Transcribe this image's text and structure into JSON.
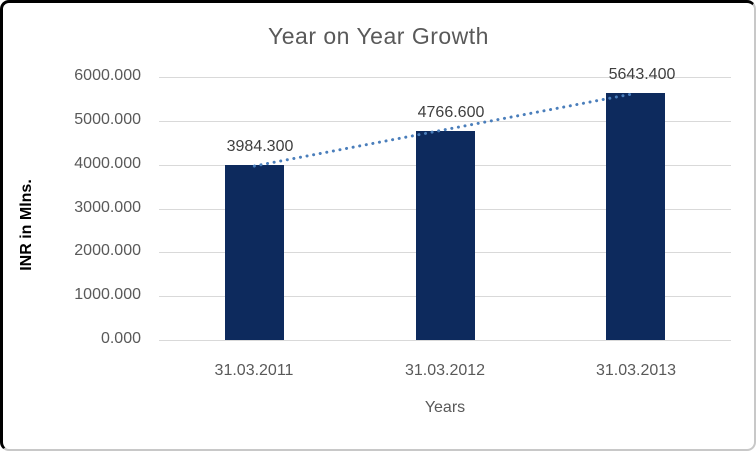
{
  "chart_data": {
    "type": "bar",
    "title": "Year on Year Growth",
    "xlabel": "Years",
    "ylabel": "INR in Mlns.",
    "categories": [
      "31.03.2011",
      "31.03.2012",
      "31.03.2013"
    ],
    "values": [
      3984.3,
      4766.6,
      5643.4
    ],
    "data_labels": [
      "3984.300",
      "4766.600",
      "5643.400"
    ],
    "ylim": [
      0,
      6000
    ],
    "ytick_labels": [
      "0.000",
      "1000.000",
      "2000.000",
      "3000.000",
      "4000.000",
      "5000.000",
      "6000.000"
    ],
    "grid": true,
    "legend_position": "none",
    "trendline": {
      "type": "linear",
      "style": "dotted"
    },
    "colors": {
      "bar": "#0d2a5d",
      "trendline": "#4a7ebb",
      "gridline": "#d9d9d9",
      "title_text": "#595959",
      "axis_text": "#595959",
      "data_label_text": "#3f3f3f",
      "ylabel_text": "#000000",
      "frame_dark": "#000000",
      "frame_light": "#c8c8c8"
    }
  }
}
